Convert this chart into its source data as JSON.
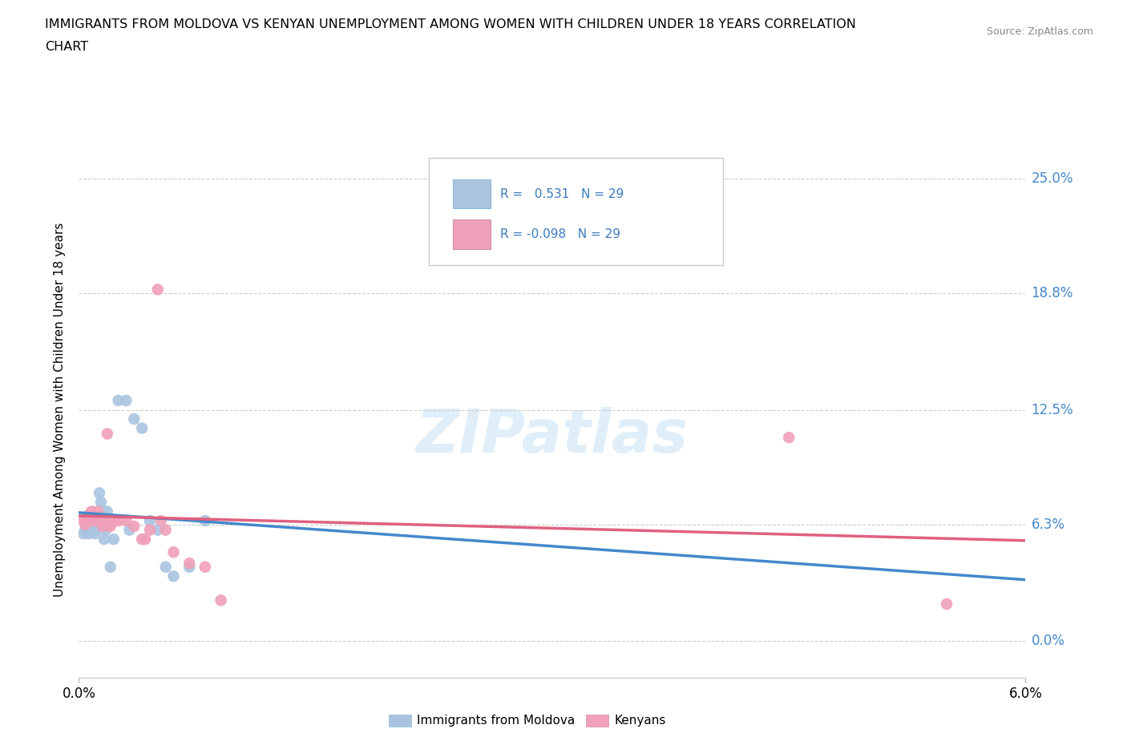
{
  "title_line1": "IMMIGRANTS FROM MOLDOVA VS KENYAN UNEMPLOYMENT AMONG WOMEN WITH CHILDREN UNDER 18 YEARS CORRELATION",
  "title_line2": "CHART",
  "source": "Source: ZipAtlas.com",
  "ylabel": "Unemployment Among Women with Children Under 18 years",
  "xlabel_moldova": "Immigrants from Moldova",
  "xlabel_kenya": "Kenyans",
  "xlim": [
    0.0,
    0.06
  ],
  "ylim": [
    -0.02,
    0.27
  ],
  "yticks": [
    0.0,
    0.063,
    0.125,
    0.188,
    0.25
  ],
  "ytick_labels": [
    "0.0%",
    "6.3%",
    "12.5%",
    "18.8%",
    "25.0%"
  ],
  "xtick_labels": [
    "0.0%",
    "6.0%"
  ],
  "r_moldova": 0.531,
  "n_moldova": 29,
  "r_kenya": -0.098,
  "n_kenya": 29,
  "moldova_color": "#aac4e0",
  "kenya_color": "#f0a0b8",
  "trendline_moldova_color": "#4488cc",
  "trendline_kenya_color": "#e06080",
  "trendline_dashed_color": "#bbbbbb",
  "watermark": "ZIPatlas",
  "moldova_x": [
    0.0003,
    0.0004,
    0.0005,
    0.0006,
    0.0007,
    0.0008,
    0.0009,
    0.001,
    0.0011,
    0.0012,
    0.0013,
    0.0014,
    0.0015,
    0.0016,
    0.0017,
    0.0018,
    0.002,
    0.0022,
    0.0025,
    0.003,
    0.0032,
    0.0035,
    0.004,
    0.0045,
    0.005,
    0.0055,
    0.006,
    0.007,
    0.008
  ],
  "moldova_y": [
    0.058,
    0.06,
    0.062,
    0.058,
    0.06,
    0.065,
    0.062,
    0.058,
    0.06,
    0.062,
    0.08,
    0.075,
    0.068,
    0.055,
    0.06,
    0.07,
    0.04,
    0.055,
    0.13,
    0.13,
    0.06,
    0.12,
    0.115,
    0.065,
    0.06,
    0.04,
    0.035,
    0.04,
    0.065
  ],
  "kenya_x": [
    0.0003,
    0.0004,
    0.0005,
    0.0006,
    0.0007,
    0.0008,
    0.001,
    0.0012,
    0.0014,
    0.0015,
    0.0016,
    0.0018,
    0.002,
    0.0022,
    0.0025,
    0.003,
    0.0035,
    0.004,
    0.0042,
    0.0045,
    0.005,
    0.0052,
    0.0055,
    0.006,
    0.007,
    0.008,
    0.009,
    0.045,
    0.055
  ],
  "kenya_y": [
    0.065,
    0.063,
    0.065,
    0.068,
    0.065,
    0.07,
    0.065,
    0.07,
    0.065,
    0.062,
    0.065,
    0.112,
    0.062,
    0.065,
    0.065,
    0.065,
    0.062,
    0.055,
    0.055,
    0.06,
    0.19,
    0.065,
    0.06,
    0.048,
    0.042,
    0.04,
    0.022,
    0.11,
    0.02
  ]
}
